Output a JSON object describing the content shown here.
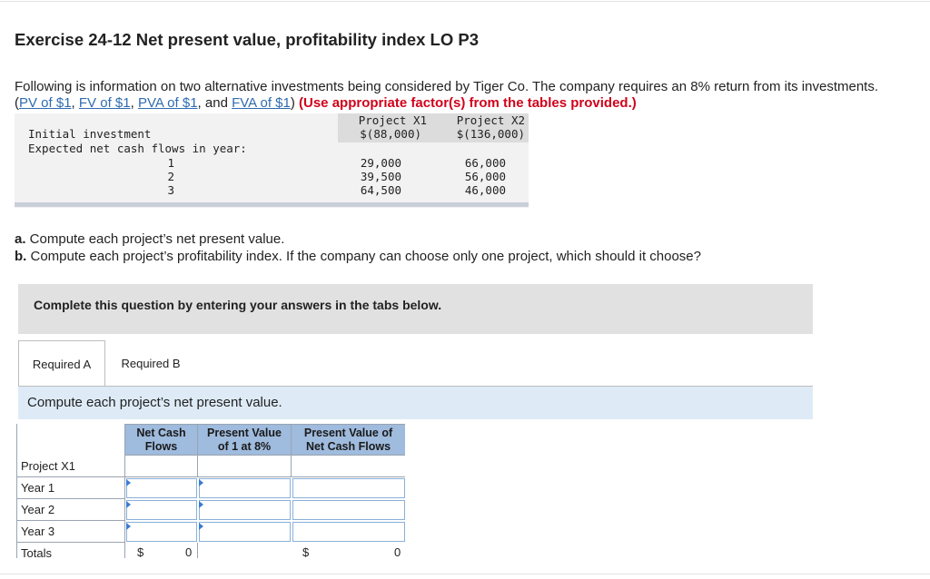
{
  "exercise": {
    "title": "Exercise 24-12 Net present value, profitability index LO P3",
    "intro_text": "Following is information on two alternative investments being considered by Tiger Co. The company requires an 8% return from its investments. (",
    "links": [
      "PV of $1",
      "FV of $1",
      "PVA of $1",
      "FVA of $1"
    ],
    "sep": ", ",
    "sep_and": ", and ",
    "close_paren": ")",
    "highlight": "(Use appropriate factor(s) from the tables provided.)"
  },
  "data_table": {
    "col_headers": [
      "Project X1",
      "Project X2"
    ],
    "initial_label": "Initial investment",
    "initial_values": [
      "$(88,000)",
      "$(136,000)"
    ],
    "flows_label": "Expected net cash flows in year:",
    "years": [
      "1",
      "2",
      "3"
    ],
    "x1_flows": [
      "29,000",
      "39,500",
      "64,500"
    ],
    "x2_flows": [
      "66,000",
      "56,000",
      "46,000"
    ]
  },
  "questions": {
    "a_prefix": "a.",
    "a_text": " Compute each project’s net present value.",
    "b_prefix": "b.",
    "b_text": " Compute each project’s profitability index. If the company can choose only one project, which should it choose?"
  },
  "banner": "Complete this question by entering your answers in the tabs below.",
  "tabs": [
    "Required A",
    "Required B"
  ],
  "instruction": "Compute each project’s net present value.",
  "answer_table": {
    "headers": [
      "Net Cash\nFlows",
      "Present Value\nof 1 at 8%",
      "Present Value of\nNet Cash Flows"
    ],
    "rows": [
      "Project X1",
      "Year 1",
      "Year 2",
      "Year 3",
      "Totals"
    ],
    "totals": {
      "currency": "$",
      "net_cash_flows": "0",
      "present_value": "0"
    }
  }
}
